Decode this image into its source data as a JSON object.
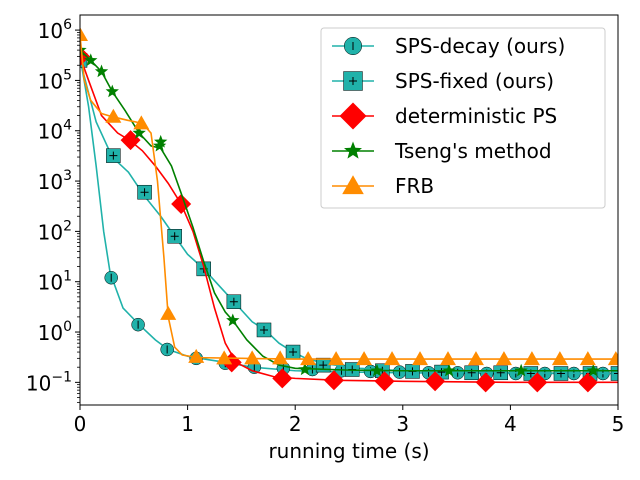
{
  "chart_data": {
    "type": "line",
    "title": "",
    "xlabel": "running time (s)",
    "ylabel": "",
    "yscale": "log",
    "xlim": [
      0,
      5
    ],
    "ylim_exp": [
      -1.45,
      6.3
    ],
    "x_ticks": [
      {
        "value": 0,
        "label": "0"
      },
      {
        "value": 1,
        "label": "1"
      },
      {
        "value": 2,
        "label": "2"
      },
      {
        "value": 3,
        "label": "3"
      },
      {
        "value": 4,
        "label": "4"
      },
      {
        "value": 5,
        "label": "5"
      }
    ],
    "y_ticks": [
      {
        "exp": 6,
        "base": "10",
        "sup": "6"
      },
      {
        "exp": 5,
        "base": "10",
        "sup": "5"
      },
      {
        "exp": 4,
        "base": "10",
        "sup": "4"
      },
      {
        "exp": 3,
        "base": "10",
        "sup": "3"
      },
      {
        "exp": 2,
        "base": "10",
        "sup": "2"
      },
      {
        "exp": 1,
        "base": "10",
        "sup": "1"
      },
      {
        "exp": 0,
        "base": "10",
        "sup": "0"
      },
      {
        "exp": -1,
        "base": "10",
        "sup": "−1"
      }
    ],
    "legend_position": "top-right",
    "series": [
      {
        "name": "SPS-decay (ours)",
        "color": "#20b2aa",
        "marker": "circle",
        "line": [
          [
            0,
            300000
          ],
          [
            0.08,
            30000
          ],
          [
            0.15,
            2000
          ],
          [
            0.22,
            100
          ],
          [
            0.28,
            15
          ],
          [
            0.4,
            3
          ],
          [
            0.55,
            1.4
          ],
          [
            0.7,
            0.7
          ],
          [
            0.82,
            0.45
          ],
          [
            1.0,
            0.33
          ],
          [
            1.2,
            0.28
          ],
          [
            1.4,
            0.24
          ],
          [
            1.6,
            0.2
          ],
          [
            2.0,
            0.17
          ],
          [
            2.5,
            0.16
          ],
          [
            3.0,
            0.155
          ],
          [
            4.0,
            0.15
          ],
          [
            5.0,
            0.15
          ]
        ],
        "markers": [
          [
            0,
            300000
          ],
          [
            0.29,
            12
          ],
          [
            0.54,
            1.4
          ],
          [
            0.81,
            0.45
          ],
          [
            1.08,
            0.3
          ],
          [
            1.35,
            0.24
          ],
          [
            1.62,
            0.2
          ],
          [
            1.89,
            0.19
          ],
          [
            2.16,
            0.18
          ],
          [
            2.43,
            0.17
          ],
          [
            2.7,
            0.165
          ],
          [
            2.97,
            0.16
          ],
          [
            3.24,
            0.155
          ],
          [
            3.51,
            0.155
          ],
          [
            3.78,
            0.15
          ],
          [
            4.05,
            0.15
          ],
          [
            4.32,
            0.15
          ],
          [
            4.59,
            0.15
          ],
          [
            4.86,
            0.15
          ]
        ]
      },
      {
        "name": "SPS-fixed (ours)",
        "color": "#20b2aa",
        "marker": "square",
        "line": [
          [
            0,
            250000
          ],
          [
            0.15,
            15000
          ],
          [
            0.3,
            3000
          ],
          [
            0.45,
            1500
          ],
          [
            0.6,
            500
          ],
          [
            0.75,
            200
          ],
          [
            0.88,
            80
          ],
          [
            1.0,
            35
          ],
          [
            1.15,
            18
          ],
          [
            1.3,
            8
          ],
          [
            1.43,
            4
          ],
          [
            1.6,
            1.6
          ],
          [
            1.72,
            1.1
          ],
          [
            1.85,
            0.6
          ],
          [
            1.98,
            0.4
          ],
          [
            2.1,
            0.3
          ],
          [
            2.3,
            0.23
          ],
          [
            2.6,
            0.19
          ],
          [
            3.0,
            0.17
          ],
          [
            4.0,
            0.155
          ],
          [
            5.0,
            0.15
          ]
        ],
        "markers": [
          [
            0,
            250000
          ],
          [
            0.31,
            3200
          ],
          [
            0.6,
            600
          ],
          [
            0.88,
            80
          ],
          [
            1.15,
            18
          ],
          [
            1.43,
            4
          ],
          [
            1.71,
            1.1
          ],
          [
            1.98,
            0.4
          ],
          [
            2.26,
            0.22
          ],
          [
            2.53,
            0.18
          ],
          [
            2.81,
            0.17
          ],
          [
            3.09,
            0.165
          ],
          [
            3.36,
            0.16
          ],
          [
            3.64,
            0.155
          ],
          [
            3.91,
            0.155
          ],
          [
            4.19,
            0.15
          ],
          [
            4.47,
            0.15
          ],
          [
            4.74,
            0.15
          ],
          [
            5.0,
            0.15
          ]
        ]
      },
      {
        "name": "deterministic PS",
        "color": "#ff0000",
        "marker": "diamond",
        "line": [
          [
            0,
            300000
          ],
          [
            0.08,
            100000
          ],
          [
            0.2,
            20000
          ],
          [
            0.35,
            9000
          ],
          [
            0.46,
            6500
          ],
          [
            0.58,
            4000
          ],
          [
            0.7,
            2000
          ],
          [
            0.82,
            900
          ],
          [
            0.94,
            350
          ],
          [
            1.05,
            100
          ],
          [
            1.15,
            20
          ],
          [
            1.25,
            3
          ],
          [
            1.35,
            0.6
          ],
          [
            1.45,
            0.25
          ],
          [
            1.6,
            0.17
          ],
          [
            1.8,
            0.13
          ],
          [
            2.0,
            0.12
          ],
          [
            2.4,
            0.11
          ],
          [
            3.0,
            0.105
          ],
          [
            4.0,
            0.1
          ],
          [
            5.0,
            0.1
          ]
        ],
        "markers": [
          [
            0,
            300000
          ],
          [
            0.47,
            6500
          ],
          [
            0.94,
            350
          ],
          [
            1.41,
            0.25
          ],
          [
            1.88,
            0.12
          ],
          [
            2.36,
            0.11
          ],
          [
            2.83,
            0.105
          ],
          [
            3.3,
            0.105
          ],
          [
            3.77,
            0.1
          ],
          [
            4.25,
            0.1
          ],
          [
            4.72,
            0.1
          ]
        ]
      },
      {
        "name": "Tseng's method",
        "color": "#008000",
        "marker": "star",
        "line": [
          [
            0,
            400000
          ],
          [
            0.1,
            250000
          ],
          [
            0.2,
            150000
          ],
          [
            0.3,
            60000
          ],
          [
            0.42,
            25000
          ],
          [
            0.55,
            9000
          ],
          [
            0.66,
            5000
          ],
          [
            0.75,
            4500
          ],
          [
            0.85,
            2000
          ],
          [
            0.95,
            500
          ],
          [
            1.05,
            120
          ],
          [
            1.15,
            25
          ],
          [
            1.25,
            6
          ],
          [
            1.35,
            2.5
          ],
          [
            1.42,
            1.7
          ],
          [
            1.55,
            0.7
          ],
          [
            1.7,
            0.33
          ],
          [
            1.85,
            0.22
          ],
          [
            2.0,
            0.19
          ],
          [
            2.5,
            0.175
          ],
          [
            3.0,
            0.17
          ],
          [
            4.0,
            0.17
          ],
          [
            5.0,
            0.17
          ]
        ],
        "markers": [
          [
            0,
            400000
          ],
          [
            0.1,
            250000
          ],
          [
            0.2,
            150000
          ],
          [
            0.3,
            60000
          ],
          [
            0.55,
            9000
          ],
          [
            0.74,
            5000
          ],
          [
            0.75,
            6000
          ],
          [
            1.42,
            1.7
          ],
          [
            2.09,
            0.18
          ],
          [
            2.76,
            0.17
          ],
          [
            3.43,
            0.17
          ],
          [
            4.1,
            0.17
          ],
          [
            4.77,
            0.17
          ]
        ]
      },
      {
        "name": "FRB",
        "color": "#ff8c00",
        "marker": "triangle",
        "line": [
          [
            0,
            800000
          ],
          [
            0.04,
            100000
          ],
          [
            0.1,
            40000
          ],
          [
            0.2,
            22000
          ],
          [
            0.3,
            19000
          ],
          [
            0.45,
            16000
          ],
          [
            0.58,
            14000
          ],
          [
            0.66,
            9000
          ],
          [
            0.72,
            1000
          ],
          [
            0.78,
            30
          ],
          [
            0.82,
            2
          ],
          [
            0.88,
            0.5
          ],
          [
            0.95,
            0.35
          ],
          [
            1.1,
            0.31
          ],
          [
            1.5,
            0.3
          ],
          [
            2.0,
            0.29
          ],
          [
            3.0,
            0.29
          ],
          [
            4.0,
            0.29
          ],
          [
            5.0,
            0.29
          ]
        ],
        "markers": [
          [
            0,
            800000
          ],
          [
            0.31,
            19000
          ],
          [
            0.57,
            14000
          ],
          [
            0.82,
            2.3
          ],
          [
            1.08,
            0.32
          ],
          [
            1.34,
            0.3
          ],
          [
            1.6,
            0.3
          ],
          [
            1.86,
            0.3
          ],
          [
            2.12,
            0.29
          ],
          [
            2.38,
            0.29
          ],
          [
            2.64,
            0.29
          ],
          [
            2.9,
            0.29
          ],
          [
            3.16,
            0.29
          ],
          [
            3.42,
            0.29
          ],
          [
            3.68,
            0.29
          ],
          [
            3.94,
            0.29
          ],
          [
            4.2,
            0.29
          ],
          [
            4.46,
            0.29
          ],
          [
            4.72,
            0.29
          ],
          [
            4.98,
            0.29
          ]
        ]
      }
    ]
  }
}
